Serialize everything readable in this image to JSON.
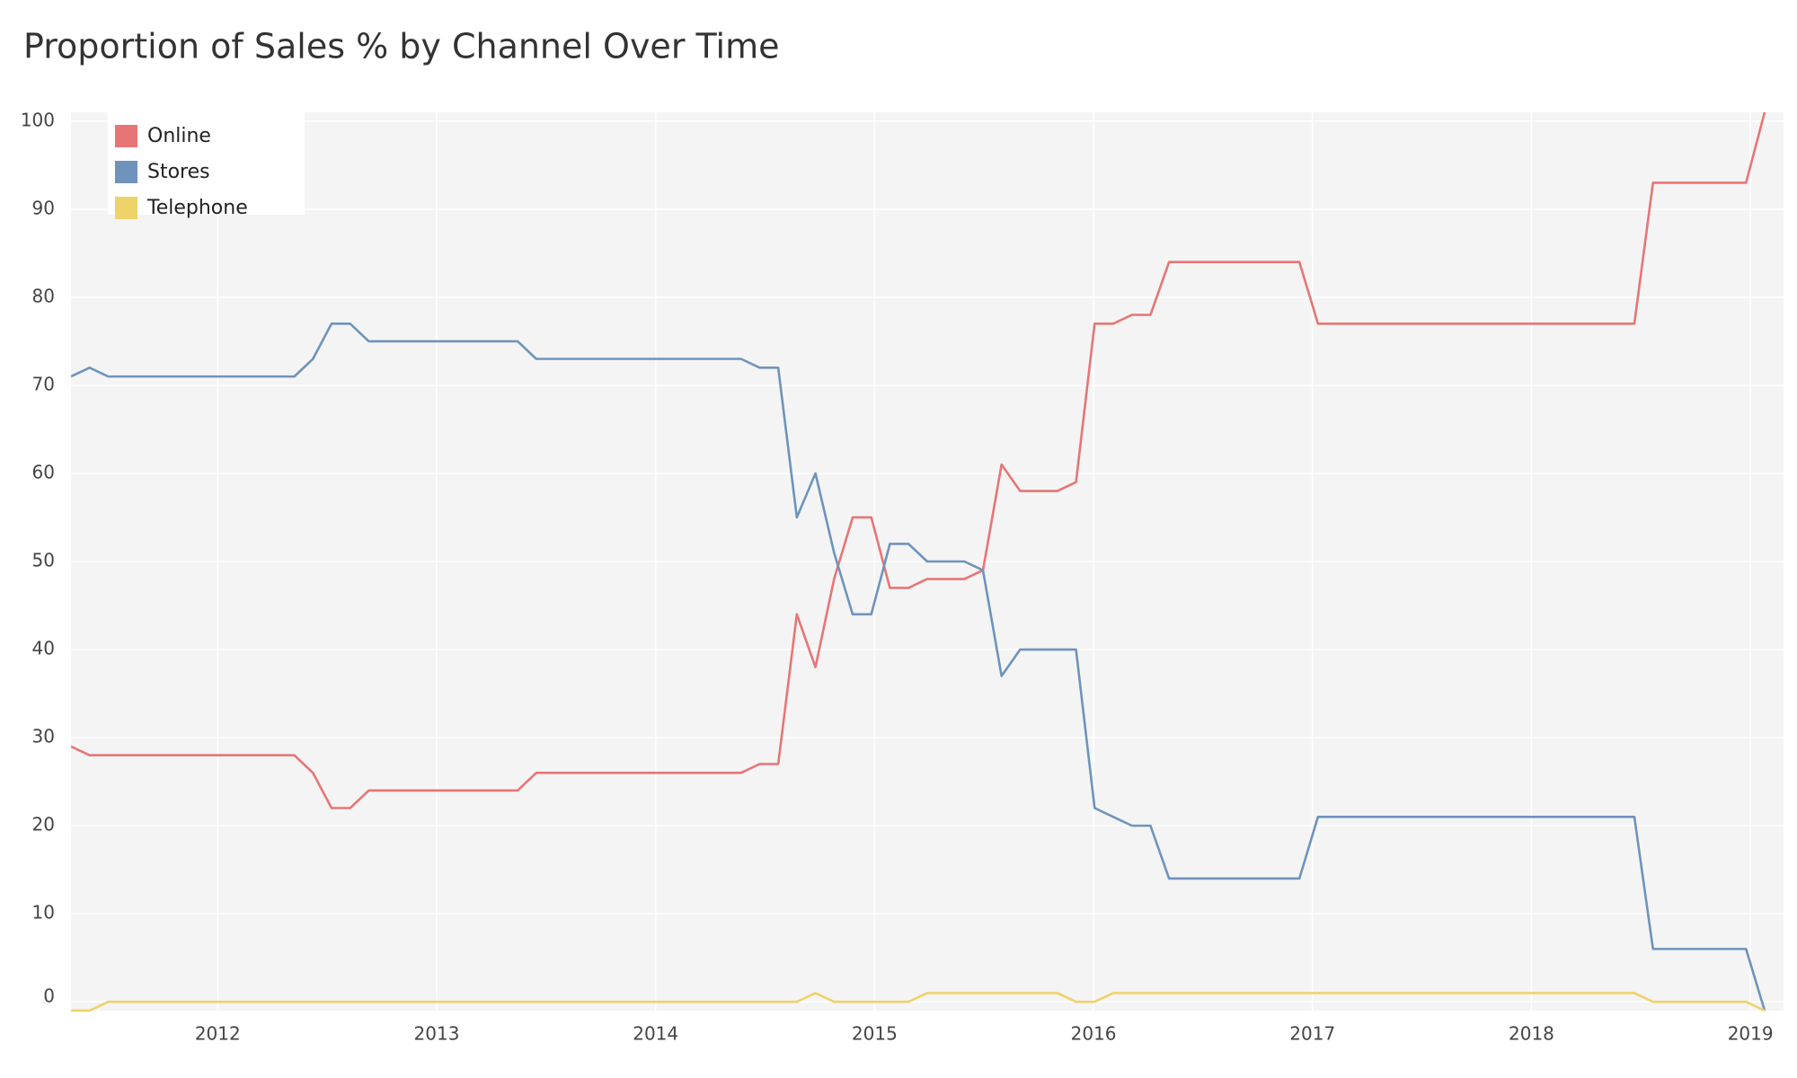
{
  "chart_data": {
    "type": "line",
    "title": "Proportion of Sales % by Channel Over Time",
    "x": [
      2011.33,
      2011.415,
      2011.5,
      2011.585,
      2011.67,
      2011.755,
      2011.84,
      2011.925,
      2012.01,
      2012.095,
      2012.18,
      2012.265,
      2012.35,
      2012.435,
      2012.52,
      2012.605,
      2012.69,
      2012.775,
      2012.86,
      2012.945,
      2013.03,
      2013.115,
      2013.2,
      2013.285,
      2013.37,
      2013.455,
      2013.54,
      2013.625,
      2013.71,
      2013.795,
      2013.88,
      2013.965,
      2014.05,
      2014.135,
      2014.22,
      2014.305,
      2014.39,
      2014.475,
      2014.56,
      2014.645,
      2014.73,
      2014.815,
      2014.9,
      2014.985,
      2015.07,
      2015.155,
      2015.24,
      2015.325,
      2015.41,
      2015.495,
      2015.58,
      2015.665,
      2015.75,
      2015.835,
      2015.92,
      2016.005,
      2016.09,
      2016.175,
      2016.26,
      2016.345,
      2016.43,
      2016.515,
      2016.6,
      2016.685,
      2016.77,
      2016.855,
      2016.94,
      2017.025,
      2017.11,
      2017.195,
      2017.28,
      2017.365,
      2017.45,
      2017.535,
      2017.62,
      2017.705,
      2017.79,
      2017.875,
      2017.96,
      2018.045,
      2018.13,
      2018.215,
      2018.3,
      2018.385,
      2018.47,
      2018.555,
      2018.64,
      2018.725,
      2018.81,
      2018.895,
      2018.98,
      2019.065
    ],
    "series": [
      {
        "name": "Online",
        "color": "#e87575",
        "values": [
          29,
          28,
          28,
          28,
          28,
          28,
          28,
          28,
          28,
          28,
          28,
          28,
          28,
          26,
          22,
          22,
          24,
          24,
          24,
          24,
          24,
          24,
          24,
          24,
          24,
          26,
          26,
          26,
          26,
          26,
          26,
          26,
          26,
          26,
          26,
          26,
          26,
          27,
          27,
          44,
          38,
          48,
          55,
          55,
          47,
          47,
          48,
          48,
          48,
          49,
          61,
          58,
          58,
          58,
          59,
          77,
          77,
          78,
          78,
          84,
          84,
          84,
          84,
          84,
          84,
          84,
          84,
          77,
          77,
          77,
          77,
          77,
          77,
          77,
          77,
          77,
          77,
          77,
          77,
          77,
          77,
          77,
          77,
          77,
          77,
          93,
          93,
          93,
          93,
          93,
          93,
          101
        ]
      },
      {
        "name": "Stores",
        "color": "#6f93bb",
        "values": [
          71,
          72,
          71,
          71,
          71,
          71,
          71,
          71,
          71,
          71,
          71,
          71,
          71,
          73,
          77,
          77,
          75,
          75,
          75,
          75,
          75,
          75,
          75,
          75,
          75,
          73,
          73,
          73,
          73,
          73,
          73,
          73,
          73,
          73,
          73,
          73,
          73,
          72,
          72,
          55,
          60,
          51,
          44,
          44,
          52,
          52,
          50,
          50,
          50,
          49,
          37,
          40,
          40,
          40,
          40,
          22,
          21,
          20,
          20,
          14,
          14,
          14,
          14,
          14,
          14,
          14,
          14,
          21,
          21,
          21,
          21,
          21,
          21,
          21,
          21,
          21,
          21,
          21,
          21,
          21,
          21,
          21,
          21,
          21,
          21,
          6,
          6,
          6,
          6,
          6,
          6,
          -1
        ]
      },
      {
        "name": "Telephone",
        "color": "#eed26a",
        "values": [
          -1,
          -1,
          0,
          0,
          0,
          0,
          0,
          0,
          0,
          0,
          0,
          0,
          0,
          0,
          0,
          0,
          0,
          0,
          0,
          0,
          0,
          0,
          0,
          0,
          0,
          0,
          0,
          0,
          0,
          0,
          0,
          0,
          0,
          0,
          0,
          0,
          0,
          0,
          0,
          0,
          1,
          0,
          0,
          0,
          0,
          0,
          1,
          1,
          1,
          1,
          1,
          1,
          1,
          1,
          0,
          0,
          1,
          1,
          1,
          1,
          1,
          1,
          1,
          1,
          1,
          1,
          1,
          1,
          1,
          1,
          1,
          1,
          1,
          1,
          1,
          1,
          1,
          1,
          1,
          1,
          1,
          1,
          1,
          1,
          1,
          0,
          0,
          0,
          0,
          0,
          0,
          -1
        ]
      }
    ],
    "xlim": [
      2011.33,
      2019.065
    ],
    "xticks": [
      2012,
      2013,
      2014,
      2015,
      2016,
      2017,
      2018,
      2019
    ],
    "ylim": [
      -1,
      101
    ],
    "yticks": [
      0,
      10,
      20,
      30,
      40,
      50,
      60,
      70,
      80,
      90,
      100
    ],
    "grid": true,
    "legend": "top-left"
  }
}
